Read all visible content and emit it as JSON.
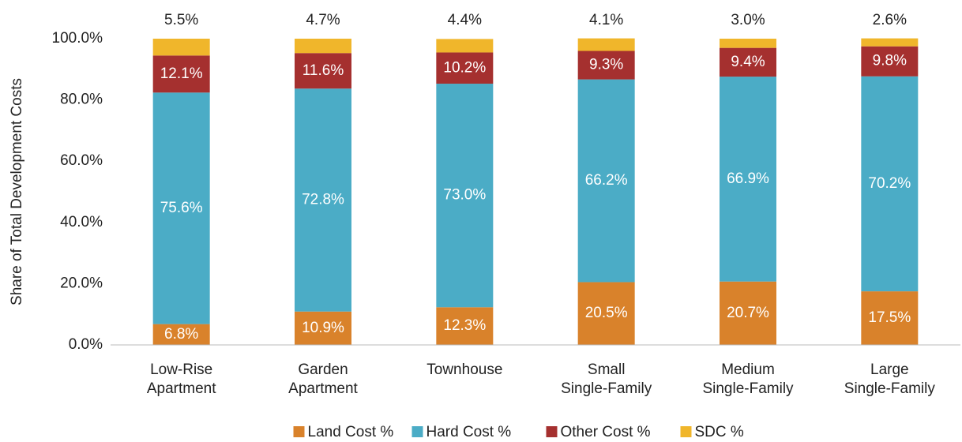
{
  "chart_data": {
    "type": "stacked_bar",
    "y_label": "Share of Total Development Costs",
    "categories": [
      "Low-Rise Apartment",
      "Garden Apartment",
      "Townhouse",
      "Small Single-Family",
      "Medium Single-Family",
      "Large Single-Family"
    ],
    "series": [
      {
        "name": "Land Cost %",
        "color": "#d9822b",
        "values": [
          6.8,
          10.9,
          12.3,
          20.5,
          20.7,
          17.5
        ],
        "value_labels": [
          "6.8%",
          "10.9%",
          "12.3%",
          "20.5%",
          "20.7%",
          "17.5%"
        ]
      },
      {
        "name": "Hard Cost %",
        "color": "#4bacc6",
        "values": [
          75.6,
          72.8,
          73.0,
          66.2,
          66.9,
          70.2
        ],
        "value_labels": [
          "75.6%",
          "72.8%",
          "73.0%",
          "66.2%",
          "66.9%",
          "70.2%"
        ]
      },
      {
        "name": "Other Cost %",
        "color": "#a5302f",
        "values": [
          12.1,
          11.6,
          10.2,
          9.3,
          9.4,
          9.8
        ],
        "value_labels": [
          "12.1%",
          "11.6%",
          "10.2%",
          "9.3%",
          "9.4%",
          "9.8%"
        ]
      },
      {
        "name": "SDC %",
        "color": "#f0b62b",
        "values": [
          5.5,
          4.7,
          4.4,
          4.1,
          3.0,
          2.6
        ],
        "value_labels": [
          "5.5%",
          "4.7%",
          "4.4%",
          "4.1%",
          "3.0%",
          "2.6%"
        ]
      }
    ],
    "ylim": [
      0,
      100
    ],
    "yticks": [
      {
        "value": 0,
        "label": "0.0%"
      },
      {
        "value": 20,
        "label": "20.0%"
      },
      {
        "value": 40,
        "label": "40.0%"
      },
      {
        "value": 60,
        "label": "60.0%"
      },
      {
        "value": 80,
        "label": "80.0%"
      },
      {
        "value": 100,
        "label": "100.0%"
      }
    ],
    "grid": false,
    "legend": "bottom"
  }
}
